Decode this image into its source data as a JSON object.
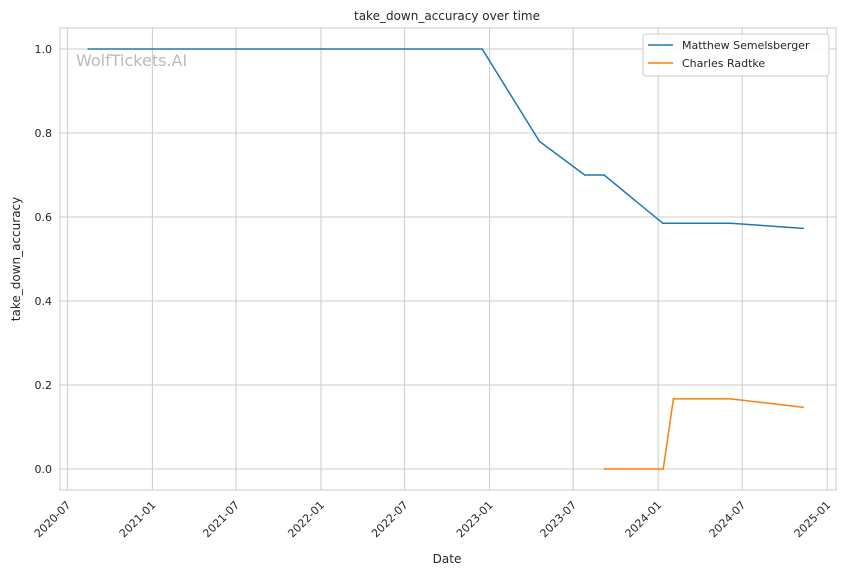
{
  "chart_data": {
    "type": "line",
    "title": "take_down_accuracy over time",
    "xlabel": "Date",
    "ylabel": "take_down_accuracy",
    "watermark": "WolfTickets.AI",
    "xlim": [
      "2020-06-15",
      "2025-01-20"
    ],
    "ylim": [
      -0.05,
      1.05
    ],
    "x_ticks": [
      "2020-07",
      "2021-01",
      "2021-07",
      "2022-01",
      "2022-07",
      "2023-01",
      "2023-07",
      "2024-01",
      "2024-07",
      "2025-01"
    ],
    "y_ticks": [
      "0.0",
      "0.2",
      "0.4",
      "0.6",
      "0.8",
      "1.0"
    ],
    "grid": true,
    "legend_position": "top-right",
    "series": [
      {
        "name": "Matthew Semelsberger",
        "color": "#1f77b4",
        "x": [
          "2020-08-15",
          "2022-12-16",
          "2023-04-19",
          "2023-07-26",
          "2023-09-06",
          "2024-01-11",
          "2024-06-06",
          "2024-11-10"
        ],
        "y": [
          1.0,
          1.0,
          0.78,
          0.7,
          0.7,
          0.585,
          0.585,
          0.573
        ]
      },
      {
        "name": "Charles Radtke",
        "color": "#ff7f0e",
        "x": [
          "2023-09-06",
          "2024-01-12",
          "2024-02-03",
          "2024-06-06",
          "2024-11-10"
        ],
        "y": [
          0.0,
          0.0,
          0.167,
          0.167,
          0.147
        ]
      }
    ]
  }
}
